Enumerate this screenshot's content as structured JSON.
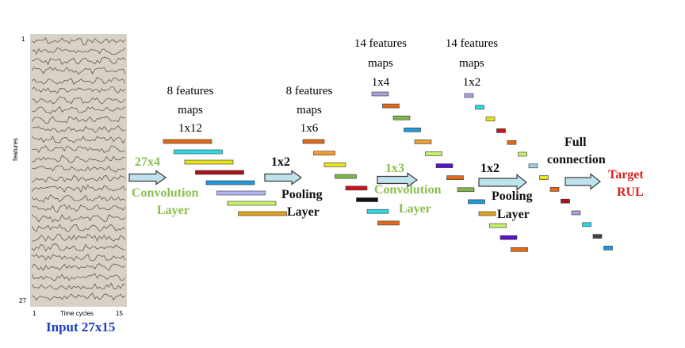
{
  "input": {
    "y_top_label": "1",
    "y_bottom_label": "27",
    "y_axis_label": "features",
    "x_left_label": "1",
    "x_axis_label": "Time cycles",
    "x_right_label": "15",
    "caption": "Input 27x15",
    "panel_color": "#d8d1c6",
    "caption_color": "#1f3fbf"
  },
  "stages": [
    {
      "id": "conv1",
      "kernel": "27x4",
      "op_line1": "Convolution",
      "op_line2": "Layer",
      "color": "#8bbf4e"
    },
    {
      "id": "pool1",
      "kernel": "1x2",
      "op_line1": "Pooling",
      "op_line2": "Layer",
      "color": "#111111"
    },
    {
      "id": "conv2",
      "kernel": "1x3",
      "op_line1": "Convolution",
      "op_line2": "Layer",
      "color": "#8bbf4e"
    },
    {
      "id": "pool2",
      "kernel": "1x2",
      "op_line1": "Pooling",
      "op_line2": "Layer",
      "color": "#111111"
    },
    {
      "id": "fc",
      "kernel": "",
      "op_line1": "Full",
      "op_line2": "connection",
      "color": "#111111"
    }
  ],
  "feature_groups": [
    {
      "id": "fm1",
      "line1": "8 features",
      "line2": "maps",
      "line3": "1x12"
    },
    {
      "id": "fm2",
      "line1": "8 features",
      "line2": "maps",
      "line3": "1x6"
    },
    {
      "id": "fm3",
      "line1": "14 features",
      "line2": "maps",
      "line3": "1x4"
    },
    {
      "id": "fm4",
      "line1": "14 features",
      "line2": "maps",
      "line3": "1x2"
    }
  ],
  "output": {
    "line1": "Target",
    "line2": "RUL",
    "color": "#e02020"
  },
  "bar_colors": {
    "group1": [
      "#e06a1c",
      "#2ed6e6",
      "#e8e21a",
      "#a8141c",
      "#2198d8",
      "#b3b6f0",
      "#c7f06a",
      "#e0a01c"
    ],
    "group2": [
      "#e06a1c",
      "#f0a030",
      "#e8e21a",
      "#7fb84a",
      "#c4141c",
      "#111111",
      "#2ed6e6",
      "#e06a1c"
    ],
    "group3": [
      "#a8a2d8",
      "#e06a1c",
      "#7fb84a",
      "#2198d8",
      "#f0a030",
      "#c7f06a",
      "#5a14c8",
      "#e06a1c",
      "#7fb84a",
      "#2198d8",
      "#e0a01c",
      "#c7f06a",
      "#5a14c8",
      "#e06a1c"
    ],
    "group4": [
      "#a8a2d8",
      "#2ed6e6",
      "#e8e21a",
      "#c4141c",
      "#e06a1c",
      "#c7f06a",
      "#9ad0e0",
      "#e8e21a",
      "#e06a1c",
      "#a8141c",
      "#a8a2d8",
      "#2ed6e6",
      "#444444",
      "#2198d8"
    ]
  },
  "arrow_fill": "#bfe3ee",
  "arrow_stroke": "#3a3a3a"
}
